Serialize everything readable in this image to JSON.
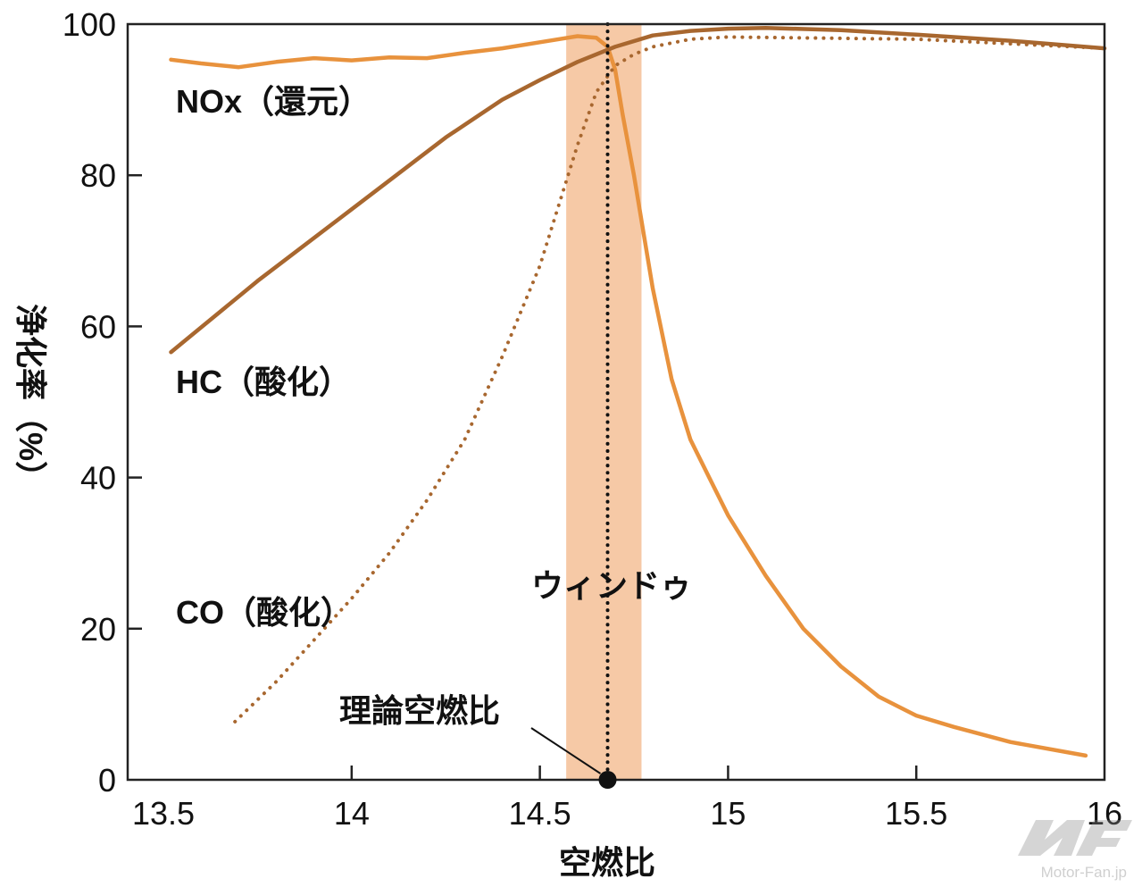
{
  "chart_data": {
    "type": "line",
    "xlabel": "空燃比",
    "ylabel": "浄化率（%）",
    "xlim": [
      13.405,
      16
    ],
    "ylim": [
      0,
      100
    ],
    "xticks": [
      "13.5",
      "14",
      "14.5",
      "15",
      "15.5",
      "16"
    ],
    "yticks": [
      "0",
      "20",
      "40",
      "60",
      "80",
      "100"
    ],
    "grid": false,
    "colors": {
      "nox": "#e8923d",
      "hc": "#a8672f",
      "co": "#a8672f",
      "window": "#f6c9a6"
    },
    "series": [
      {
        "name": "NOx（還元）",
        "style": "solid",
        "color": "#e8923d",
        "x": [
          13.52,
          13.6,
          13.7,
          13.8,
          13.9,
          14.0,
          14.1,
          14.2,
          14.3,
          14.4,
          14.5,
          14.6,
          14.65,
          14.68,
          14.7,
          14.72,
          14.75,
          14.8,
          14.85,
          14.9,
          14.95,
          15.0,
          15.1,
          15.2,
          15.3,
          15.4,
          15.5,
          15.6,
          15.75,
          15.95
        ],
        "y": [
          95.3,
          94.8,
          94.3,
          95,
          95.5,
          95.2,
          95.6,
          95.5,
          96.2,
          96.8,
          97.6,
          98.4,
          98.2,
          97,
          94,
          88,
          80,
          65,
          53,
          45,
          40,
          35,
          27,
          20,
          15,
          11,
          8.5,
          7,
          5,
          3.2
        ]
      },
      {
        "name": "HC（酸化）",
        "style": "solid",
        "color": "#a8672f",
        "x": [
          13.52,
          13.75,
          14.0,
          14.25,
          14.4,
          14.5,
          14.6,
          14.7,
          14.8,
          14.9,
          15.0,
          15.1,
          15.3,
          15.5,
          15.75,
          16.0
        ],
        "y": [
          56.6,
          66,
          75.5,
          85,
          90,
          92.6,
          95,
          97,
          98.5,
          99.1,
          99.4,
          99.5,
          99.2,
          98.6,
          97.8,
          96.8
        ]
      },
      {
        "name": "CO（酸化）",
        "style": "dotted",
        "color": "#a8672f",
        "x": [
          13.69,
          13.8,
          13.9,
          14.0,
          14.1,
          14.2,
          14.3,
          14.4,
          14.5,
          14.55,
          14.6,
          14.65,
          14.7,
          14.75,
          14.8,
          14.9,
          15.0,
          15.5,
          16.0
        ],
        "y": [
          7.7,
          13,
          18.5,
          24,
          30,
          37,
          45,
          56,
          68,
          76,
          84,
          91,
          94.5,
          96,
          97,
          98,
          98.3,
          98,
          96.8
        ]
      }
    ],
    "window": {
      "label": "ウィンドゥ",
      "x_range": [
        14.57,
        14.77
      ]
    },
    "stoichiometric": {
      "label": "理論空燃比",
      "x": 14.68
    }
  },
  "watermark": "Motor-Fan.jp"
}
